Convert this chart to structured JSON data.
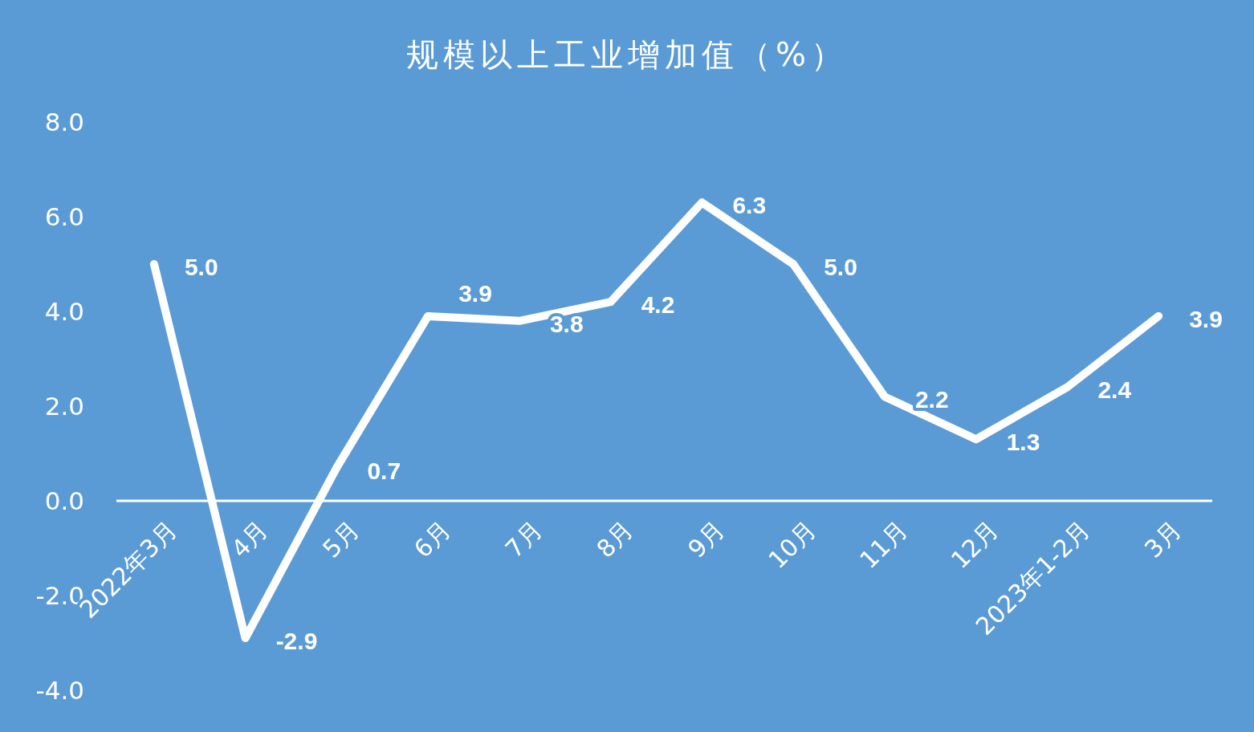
{
  "chart_data": {
    "type": "line",
    "title": "规模以上工业增加值（%）",
    "categories": [
      "2022年3月",
      "4月",
      "5月",
      "6月",
      "7月",
      "8月",
      "9月",
      "10月",
      "11月",
      "12月",
      "2023年1-2月",
      "3月"
    ],
    "series": [
      {
        "color": "#ffffff",
        "values": [
          5.0,
          -2.9,
          0.7,
          3.9,
          3.8,
          4.2,
          6.3,
          5.0,
          2.2,
          1.3,
          2.4,
          3.9
        ],
        "value_labels": [
          "5.0",
          "-2.9",
          "0.7",
          "3.9",
          "3.8",
          "4.2",
          "6.3",
          "5.0",
          "2.2",
          "1.3",
          "2.4",
          "3.9"
        ]
      }
    ],
    "ylim": [
      -4,
      8
    ],
    "yticks": [
      {
        "value": -4,
        "label": "-4.0"
      },
      {
        "value": -2,
        "label": "-2.0"
      },
      {
        "value": 0,
        "label": "0.0"
      },
      {
        "value": 2,
        "label": "2.0"
      },
      {
        "value": 4,
        "label": "4.0"
      },
      {
        "value": 6,
        "label": "6.0"
      },
      {
        "value": 8,
        "label": "8.0"
      }
    ],
    "grid": false,
    "marker": "none",
    "line_style": "solid"
  }
}
